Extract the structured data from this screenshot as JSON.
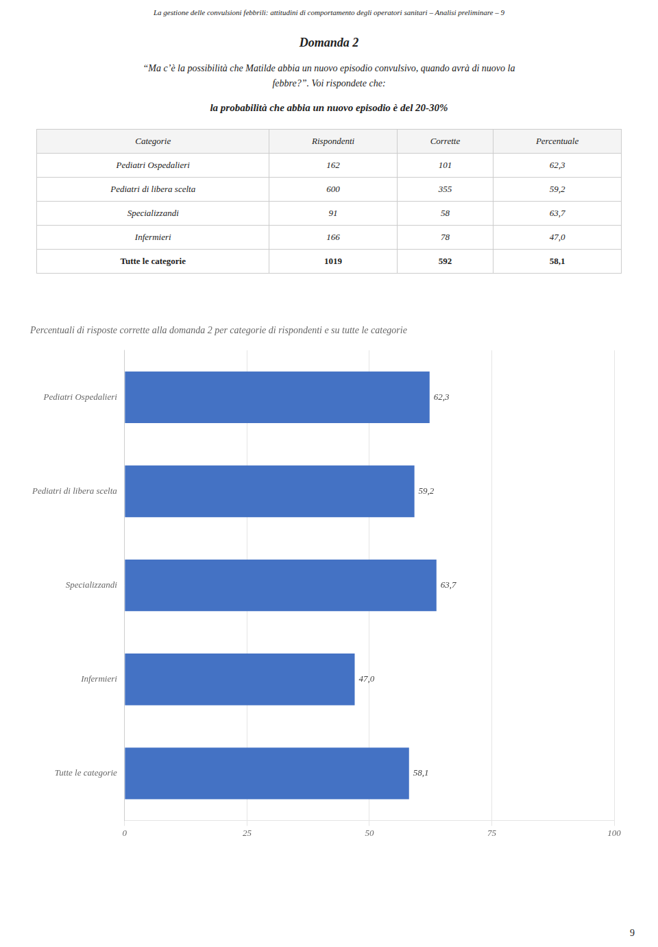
{
  "chart_data": {
    "type": "bar",
    "orientation": "horizontal",
    "title": "Percentuali di risposte corrette alla domanda 2 per categorie di rispondenti e su tutte le categorie",
    "annotations": [
      "La gestione delle convulsioni febbrili: attitudini di comportamento degli operatori sanitari – Analisi preliminare – 9",
      "9",
      "Domanda 2",
      "“Ma c’è la possibilità che Matilde abbia un nuovo episodio convulsivo, quando avrà di nuovo la",
      "febbre?”. Voi rispondete che:",
      "la probabilità che abbia un nuovo episodio è del 20-30%"
    ],
    "categories": [
      "Pediatri Ospedalieri",
      "Pediatri di libera scelta",
      "Specializzandi",
      "Infermieri",
      "Tutte le categorie"
    ],
    "values": [
      62.3,
      59.2,
      63.7,
      47.0,
      58.1
    ],
    "value_labels": [
      "62,3",
      "59,2",
      "63,7",
      "47,0",
      "58,1"
    ],
    "data_labels": true,
    "color": "#4472C4",
    "xlim": [
      0,
      100
    ],
    "xticks": [
      0,
      25,
      50,
      75,
      100
    ],
    "grid": true
  },
  "table": {
    "columns": [
      "Categorie",
      "Rispondenti",
      "Corrette",
      "Percentuale"
    ],
    "rows": [
      [
        "Pediatri Ospedalieri",
        "162",
        "101",
        "62,3"
      ],
      [
        "Pediatri di libera scelta",
        "600",
        "355",
        "59,2"
      ],
      [
        "Specializzandi",
        "91",
        "58",
        "63,7"
      ],
      [
        "Infermieri",
        "166",
        "78",
        "47,0"
      ],
      [
        "Tutte le categorie",
        "1019",
        "592",
        "58,1"
      ]
    ]
  }
}
